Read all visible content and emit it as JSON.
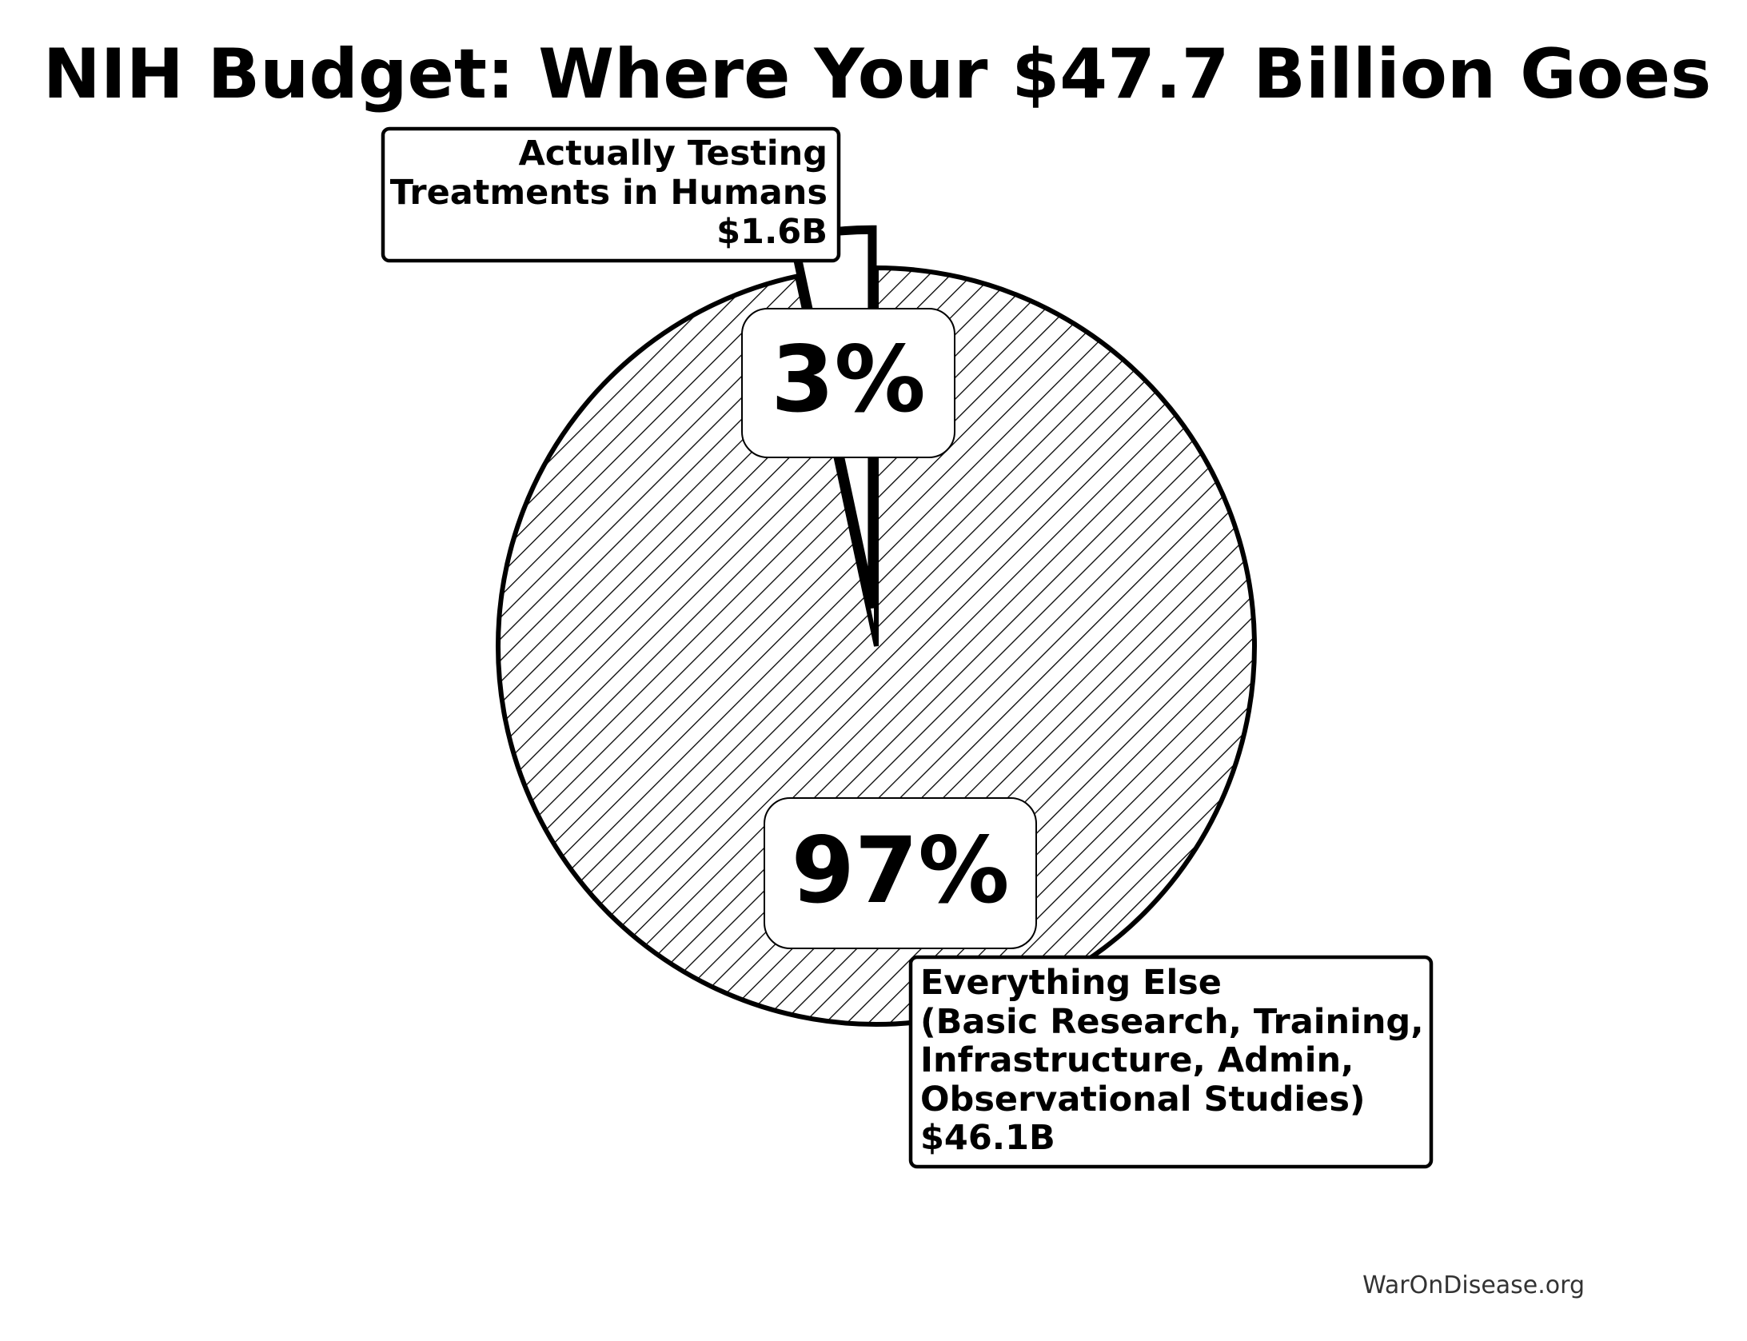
{
  "chart_data": {
    "type": "pie",
    "title": "NIH Budget: Where Your $47.7 Billion Goes",
    "start_angle_deg": 90,
    "slices": [
      {
        "name": "Actually Testing Treatments in Humans",
        "value_billion": 1.6,
        "percent": 3,
        "percent_label": "3%",
        "label_lines": [
          "Actually Testing",
          "Treatments in Humans",
          "$1.6B"
        ],
        "exploded": true,
        "fill": "#ffffff",
        "hatched": false
      },
      {
        "name": "Everything Else",
        "value_billion": 46.1,
        "percent": 97,
        "percent_label": "97%",
        "label_lines": [
          "Everything Else",
          "(Basic Research, Training,",
          "Infrastructure, Admin,",
          "Observational Studies)",
          "$46.1B"
        ],
        "exploded": false,
        "fill": "#ffffff",
        "hatched": true
      }
    ],
    "source": "WarOnDisease.org"
  },
  "colors": {
    "stroke": "#000000",
    "background": "#ffffff",
    "hatch": "#000000",
    "source_text": "#333333"
  }
}
